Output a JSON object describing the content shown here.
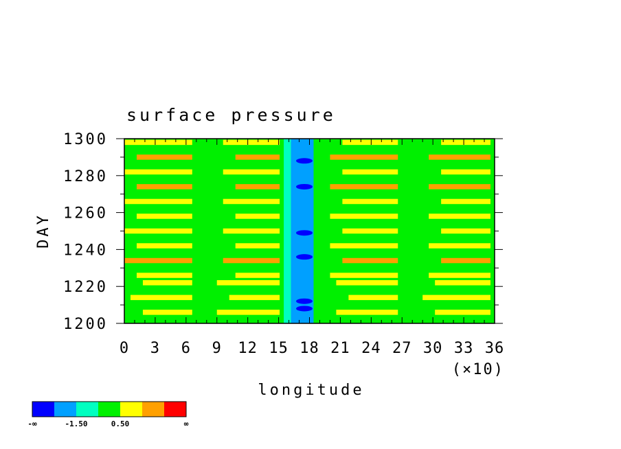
{
  "chart_data": {
    "type": "heatmap",
    "title": "surface pressure",
    "xlabel": "longitude",
    "ylabel": "DAY",
    "x_scale_note": "(×10)",
    "xlim": [
      0,
      36
    ],
    "ylim": [
      1200,
      1300
    ],
    "x_ticks": [
      "0",
      "3",
      "6",
      "9",
      "12",
      "15",
      "18",
      "21",
      "24",
      "27",
      "30",
      "33",
      "36"
    ],
    "y_ticks": [
      "1200",
      "1220",
      "1240",
      "1260",
      "1280",
      "1300"
    ],
    "colorbar": {
      "colors": [
        "#0000ff",
        "#00a0ff",
        "#00ffc0",
        "#00f000",
        "#ffff00",
        "#ffa000",
        "#ff0000"
      ],
      "labels": [
        "-∞",
        "-1.50",
        "0.50",
        "∞"
      ]
    },
    "bands": [
      {
        "day": 1200,
        "level": 3
      },
      {
        "day": 1204,
        "level": 4
      },
      {
        "day": 1208,
        "level": 3
      },
      {
        "day": 1212,
        "level": 4
      },
      {
        "day": 1216,
        "level": 3
      },
      {
        "day": 1220,
        "level": 4
      },
      {
        "day": 1224,
        "level": 4
      },
      {
        "day": 1228,
        "level": 3
      },
      {
        "day": 1232,
        "level": 5
      },
      {
        "day": 1236,
        "level": 3
      },
      {
        "day": 1240,
        "level": 4
      },
      {
        "day": 1244,
        "level": 3
      },
      {
        "day": 1248,
        "level": 4
      },
      {
        "day": 1252,
        "level": 3
      },
      {
        "day": 1256,
        "level": 4
      },
      {
        "day": 1260,
        "level": 3
      },
      {
        "day": 1264,
        "level": 4
      },
      {
        "day": 1268,
        "level": 3
      },
      {
        "day": 1272,
        "level": 5
      },
      {
        "day": 1276,
        "level": 3
      },
      {
        "day": 1280,
        "level": 4
      },
      {
        "day": 1284,
        "level": 3
      },
      {
        "day": 1288,
        "level": 5
      },
      {
        "day": 1292,
        "level": 3
      },
      {
        "day": 1296,
        "level": 4
      }
    ],
    "trough": {
      "lon_center": 17.5,
      "level": 1,
      "deep_level": 0,
      "deep_days": [
        1208,
        1212,
        1236,
        1249,
        1274,
        1288
      ]
    }
  }
}
